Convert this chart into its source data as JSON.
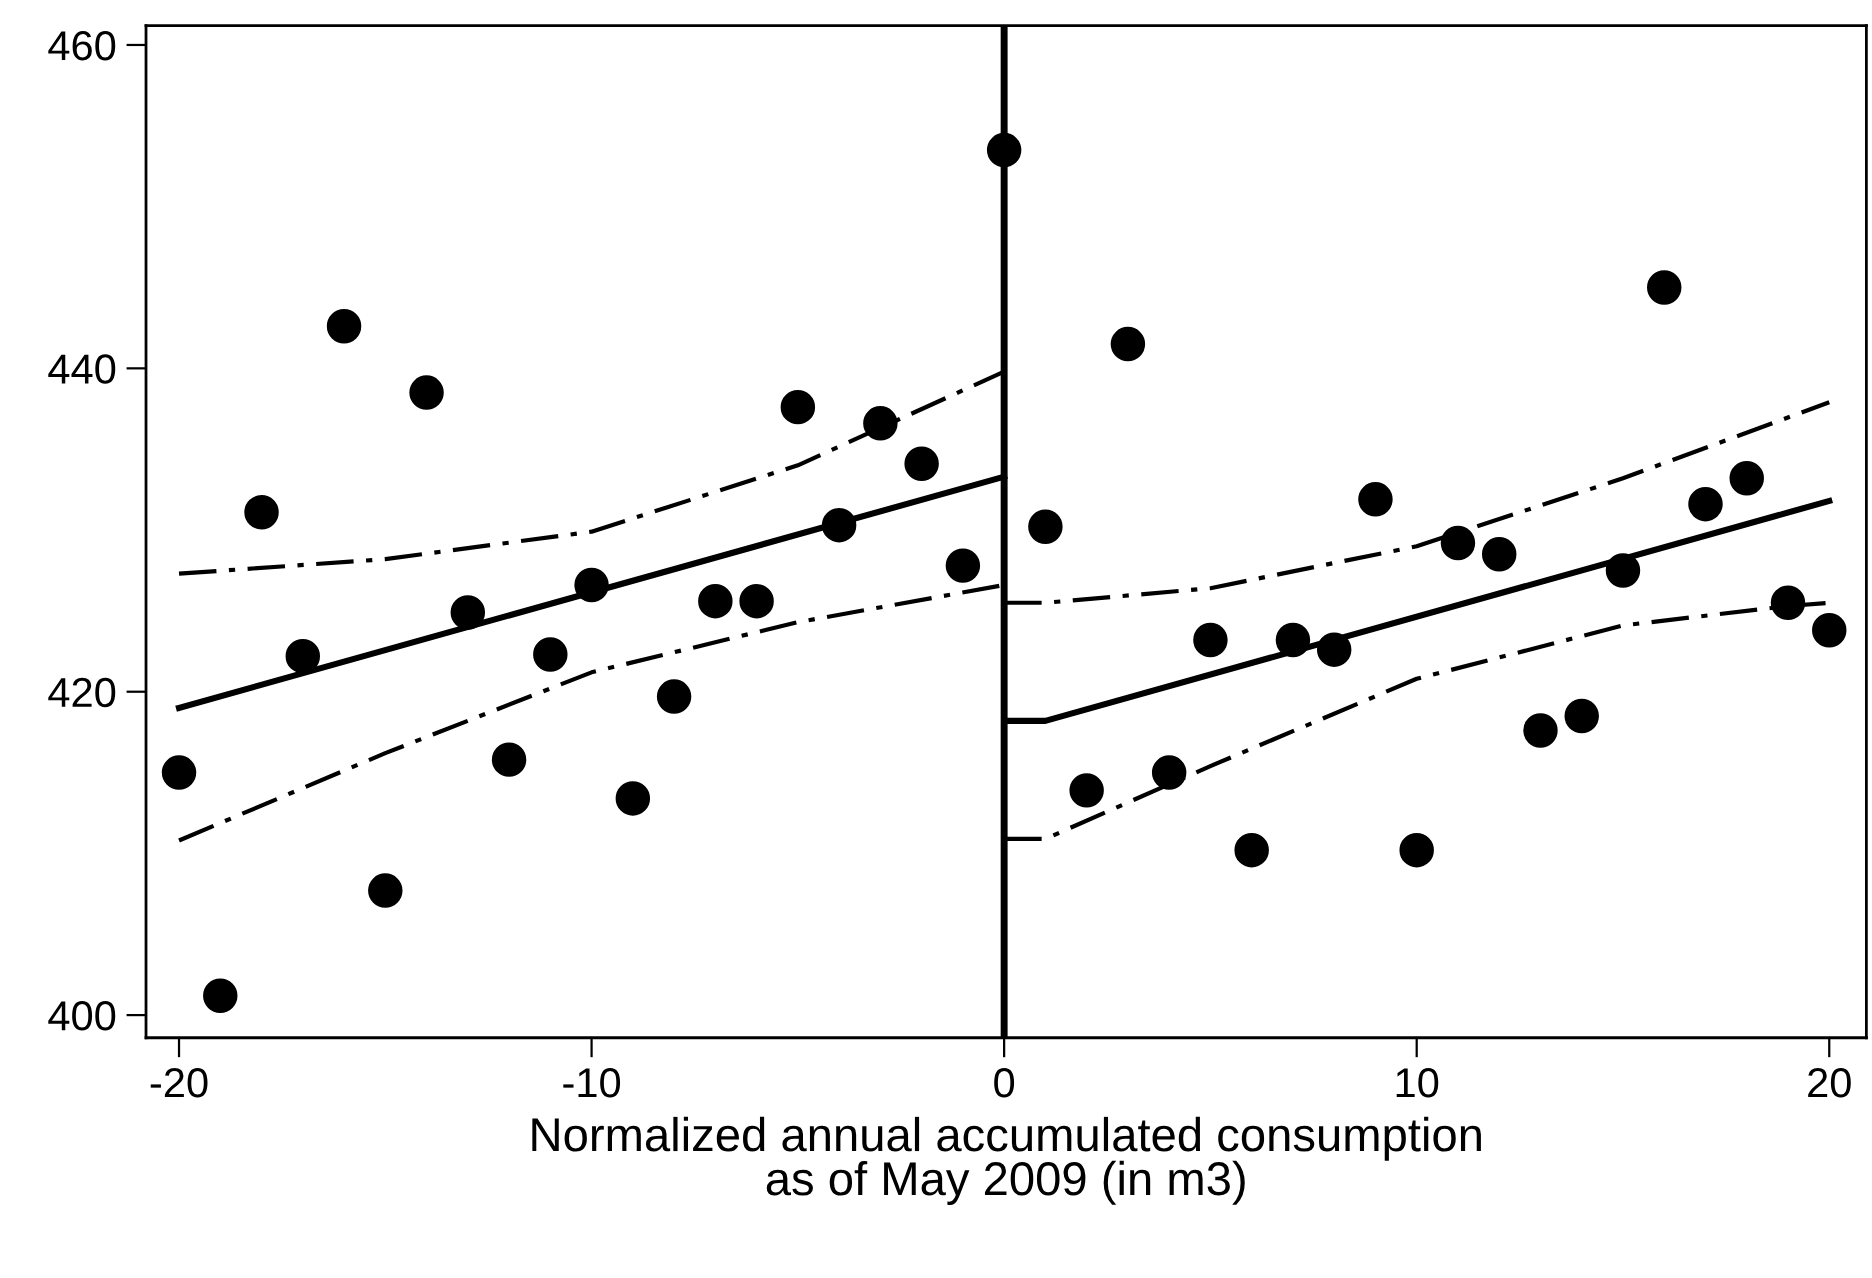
{
  "chart_data": {
    "type": "scatter",
    "xlabel": "Normalized annual accumulated consumption\nas of May 2009 (in m3)",
    "xlim": [
      -20.8,
      20.9
    ],
    "xticks": [
      -20,
      -10,
      0,
      10,
      20
    ],
    "ylim": [
      398.6,
      461.2
    ],
    "yticks": [
      400,
      420,
      440,
      460
    ],
    "grid": false,
    "legend": false,
    "ref_lines": [
      {
        "axis": "x",
        "value": 0,
        "color": "#000000",
        "line_style": "solid"
      }
    ],
    "series": [
      {
        "type": "scatter",
        "color": "#000000",
        "marker": "circle",
        "x": [
          -20,
          -19,
          -18,
          -17,
          -16,
          -15,
          -14,
          -13,
          -12,
          -11,
          -10,
          -9,
          -8,
          -7,
          -6,
          -5,
          -4,
          -3,
          -2,
          -1,
          0,
          1,
          2,
          3,
          4,
          5,
          6,
          7,
          8,
          9,
          10,
          11,
          12,
          13,
          14,
          15,
          16,
          17,
          18,
          19,
          20
        ],
        "values": [
          415.0,
          401.2,
          431.1,
          422.2,
          442.6,
          407.7,
          438.5,
          424.9,
          415.8,
          422.3,
          426.6,
          413.4,
          419.7,
          425.6,
          425.6,
          437.6,
          430.3,
          436.6,
          434.1,
          427.8,
          453.5,
          430.2,
          413.9,
          441.5,
          415.0,
          423.2,
          410.2,
          423.2,
          422.6,
          431.9,
          410.2,
          429.2,
          428.5,
          417.6,
          418.5,
          427.5,
          445.0,
          431.6,
          433.2,
          425.5,
          423.8
        ]
      },
      {
        "type": "line",
        "color": "#000000",
        "line_style": "solid",
        "x": [
          -20,
          0
        ],
        "values": [
          419.0,
          433.3
        ]
      },
      {
        "type": "line",
        "color": "#000000",
        "line_style": "dashed",
        "x": [
          -20,
          -15,
          -10,
          -5,
          0
        ],
        "values": [
          427.3,
          428.2,
          429.9,
          434.0,
          439.8
        ]
      },
      {
        "type": "line",
        "color": "#000000",
        "line_style": "dashed",
        "x": [
          -20,
          -15,
          -10,
          -5,
          0
        ],
        "values": [
          410.8,
          416.2,
          421.2,
          424.3,
          426.6
        ]
      },
      {
        "type": "line",
        "color": "#000000",
        "line_style": "solid",
        "x": [
          0,
          1,
          20
        ],
        "values": [
          418.2,
          418.2,
          431.8
        ]
      },
      {
        "type": "line",
        "color": "#000000",
        "line_style": "dashed",
        "x": [
          0,
          1,
          5,
          10,
          15,
          20
        ],
        "values": [
          425.5,
          425.5,
          426.4,
          429.0,
          433.2,
          437.9
        ]
      },
      {
        "type": "line",
        "color": "#000000",
        "line_style": "dashed",
        "x": [
          0,
          1,
          5,
          10,
          15,
          19,
          20
        ],
        "values": [
          410.9,
          410.9,
          415.4,
          420.8,
          424.1,
          425.3,
          425.5
        ]
      }
    ]
  }
}
